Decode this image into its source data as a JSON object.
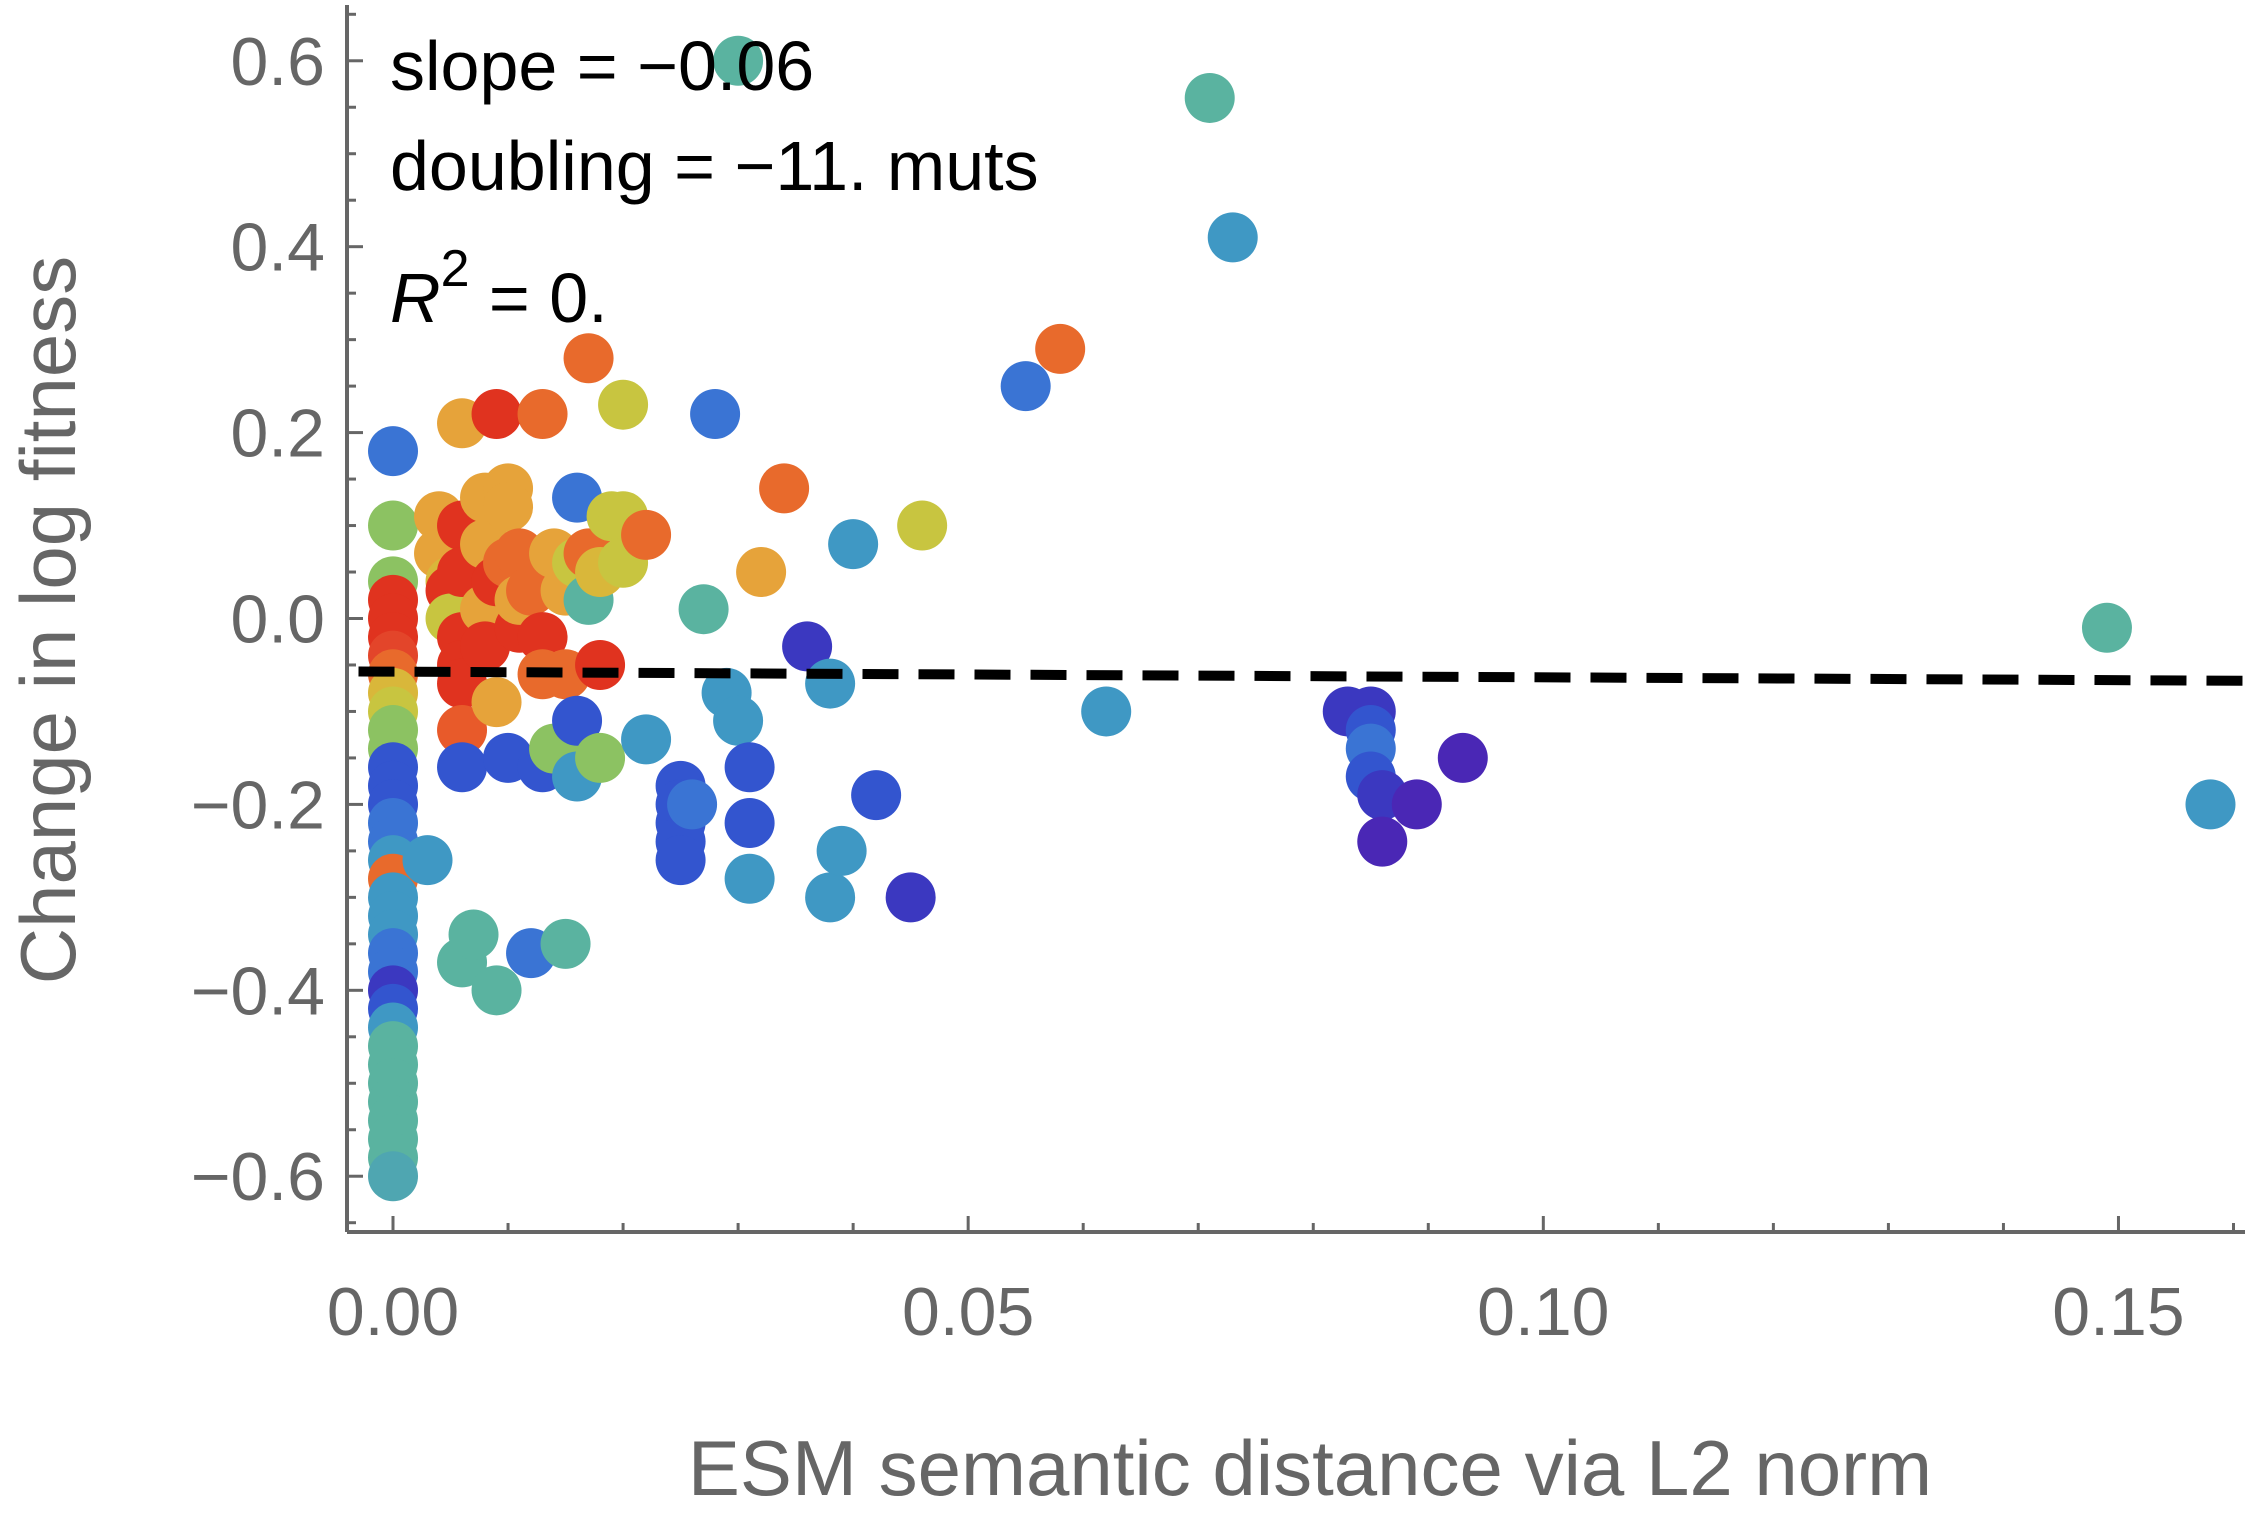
{
  "chart_data": {
    "type": "scatter",
    "title": "",
    "xlabel": "ESM semantic distance via L2 norm",
    "ylabel": "Change in log fitness",
    "xlim": [
      -0.004,
      0.161
    ],
    "ylim": [
      -0.66,
      0.66
    ],
    "xticks": [
      0.0,
      0.05,
      0.1,
      0.15
    ],
    "xtick_labels": [
      "0.00",
      "0.05",
      "0.10",
      "0.15"
    ],
    "yticks": [
      -0.6,
      -0.4,
      -0.2,
      0.0,
      0.2,
      0.4,
      0.6
    ],
    "ytick_labels": [
      "−0.6",
      "−0.4",
      "−0.2",
      "0.0",
      "0.2",
      "0.4",
      "0.6"
    ],
    "grid": false,
    "legend": "none",
    "fit_line": {
      "slope": -0.06,
      "x": [
        -0.003,
        0.161
      ],
      "y": [
        -0.057,
        -0.067
      ],
      "style": "dashed",
      "color": "#000000"
    },
    "annotations": {
      "slope": "slope = −0.06",
      "doubling": "doubling = −11. muts",
      "r2_symbol": "R",
      "r2_exp": "2",
      "r2_value": " = 0."
    },
    "points": [
      {
        "x": 0.0,
        "y": 0.18,
        "c": "#3a74d4"
      },
      {
        "x": 0.0,
        "y": 0.1,
        "c": "#8cc262"
      },
      {
        "x": 0.0,
        "y": 0.04,
        "c": "#8cc262"
      },
      {
        "x": 0.0,
        "y": 0.02,
        "c": "#e0331f"
      },
      {
        "x": 0.0,
        "y": 0.0,
        "c": "#e0331f"
      },
      {
        "x": 0.0,
        "y": -0.02,
        "c": "#e0331f"
      },
      {
        "x": 0.0,
        "y": -0.04,
        "c": "#e3452a"
      },
      {
        "x": 0.0,
        "y": -0.06,
        "c": "#e86a2c"
      },
      {
        "x": 0.0,
        "y": -0.08,
        "c": "#d9b73a"
      },
      {
        "x": 0.0,
        "y": -0.1,
        "c": "#c8c540"
      },
      {
        "x": 0.0,
        "y": -0.12,
        "c": "#8cc262"
      },
      {
        "x": 0.0,
        "y": -0.14,
        "c": "#8cc262"
      },
      {
        "x": 0.0,
        "y": -0.16,
        "c": "#3355cf"
      },
      {
        "x": 0.0,
        "y": -0.18,
        "c": "#3355cf"
      },
      {
        "x": 0.0,
        "y": -0.2,
        "c": "#3355cf"
      },
      {
        "x": 0.0,
        "y": -0.22,
        "c": "#3a74d4"
      },
      {
        "x": 0.0,
        "y": -0.24,
        "c": "#3a74d4"
      },
      {
        "x": 0.0,
        "y": -0.26,
        "c": "#3f98c4"
      },
      {
        "x": 0.0,
        "y": -0.28,
        "c": "#e86a2c"
      },
      {
        "x": 0.0,
        "y": -0.3,
        "c": "#3f98c4"
      },
      {
        "x": 0.0,
        "y": -0.32,
        "c": "#3f98c4"
      },
      {
        "x": 0.0,
        "y": -0.34,
        "c": "#3f98c4"
      },
      {
        "x": 0.0,
        "y": -0.36,
        "c": "#3a74d4"
      },
      {
        "x": 0.0,
        "y": -0.38,
        "c": "#3a74d4"
      },
      {
        "x": 0.0,
        "y": -0.4,
        "c": "#3b38c0"
      },
      {
        "x": 0.0,
        "y": -0.42,
        "c": "#3355cf"
      },
      {
        "x": 0.0,
        "y": -0.44,
        "c": "#3f98c4"
      },
      {
        "x": 0.0,
        "y": -0.46,
        "c": "#5ab3a0"
      },
      {
        "x": 0.0,
        "y": -0.48,
        "c": "#5ab3a0"
      },
      {
        "x": 0.0,
        "y": -0.5,
        "c": "#5ab3a0"
      },
      {
        "x": 0.0,
        "y": -0.52,
        "c": "#5ab3a0"
      },
      {
        "x": 0.0,
        "y": -0.54,
        "c": "#5ab3a0"
      },
      {
        "x": 0.0,
        "y": -0.56,
        "c": "#5ab3a0"
      },
      {
        "x": 0.0,
        "y": -0.58,
        "c": "#5ab3a0"
      },
      {
        "x": 0.0,
        "y": -0.6,
        "c": "#4fa6b1"
      },
      {
        "x": 0.003,
        "y": -0.26,
        "c": "#3f98c4"
      },
      {
        "x": 0.004,
        "y": 0.11,
        "c": "#e6a33a"
      },
      {
        "x": 0.004,
        "y": 0.07,
        "c": "#e6a33a"
      },
      {
        "x": 0.005,
        "y": 0.04,
        "c": "#d9b73a"
      },
      {
        "x": 0.005,
        "y": 0.03,
        "c": "#e0331f"
      },
      {
        "x": 0.005,
        "y": 0.0,
        "c": "#c8c540"
      },
      {
        "x": 0.006,
        "y": 0.1,
        "c": "#e0331f"
      },
      {
        "x": 0.006,
        "y": 0.05,
        "c": "#e0331f"
      },
      {
        "x": 0.006,
        "y": -0.02,
        "c": "#e0331f"
      },
      {
        "x": 0.006,
        "y": -0.05,
        "c": "#e0331f"
      },
      {
        "x": 0.006,
        "y": -0.07,
        "c": "#e0331f"
      },
      {
        "x": 0.006,
        "y": -0.12,
        "c": "#e85a2a"
      },
      {
        "x": 0.006,
        "y": -0.16,
        "c": "#3355cf"
      },
      {
        "x": 0.006,
        "y": -0.37,
        "c": "#5ab3a0"
      },
      {
        "x": 0.006,
        "y": 0.21,
        "c": "#e6a33a"
      },
      {
        "x": 0.007,
        "y": -0.34,
        "c": "#5ab3a0"
      },
      {
        "x": 0.008,
        "y": 0.13,
        "c": "#e6a33a"
      },
      {
        "x": 0.008,
        "y": 0.08,
        "c": "#e6a33a"
      },
      {
        "x": 0.008,
        "y": 0.01,
        "c": "#e6a33a"
      },
      {
        "x": 0.008,
        "y": -0.03,
        "c": "#e0331f"
      },
      {
        "x": 0.009,
        "y": 0.04,
        "c": "#e0331f"
      },
      {
        "x": 0.009,
        "y": -0.09,
        "c": "#e6a33a"
      },
      {
        "x": 0.009,
        "y": -0.4,
        "c": "#5ab3a0"
      },
      {
        "x": 0.009,
        "y": 0.22,
        "c": "#e0331f"
      },
      {
        "x": 0.01,
        "y": 0.14,
        "c": "#e6a33a"
      },
      {
        "x": 0.01,
        "y": 0.12,
        "c": "#e6a33a"
      },
      {
        "x": 0.01,
        "y": 0.06,
        "c": "#e86a2c"
      },
      {
        "x": 0.01,
        "y": -0.15,
        "c": "#3355cf"
      },
      {
        "x": 0.011,
        "y": 0.07,
        "c": "#e86a2c"
      },
      {
        "x": 0.011,
        "y": -0.01,
        "c": "#e0331f"
      },
      {
        "x": 0.011,
        "y": 0.02,
        "c": "#e6a33a"
      },
      {
        "x": 0.012,
        "y": -0.36,
        "c": "#3a74d4"
      },
      {
        "x": 0.012,
        "y": 0.03,
        "c": "#e86a2c"
      },
      {
        "x": 0.013,
        "y": 0.22,
        "c": "#e86a2c"
      },
      {
        "x": 0.013,
        "y": -0.02,
        "c": "#e0331f"
      },
      {
        "x": 0.013,
        "y": -0.06,
        "c": "#e86a2c"
      },
      {
        "x": 0.013,
        "y": -0.16,
        "c": "#3355cf"
      },
      {
        "x": 0.014,
        "y": 0.07,
        "c": "#e6a33a"
      },
      {
        "x": 0.014,
        "y": -0.14,
        "c": "#8cc262"
      },
      {
        "x": 0.015,
        "y": -0.35,
        "c": "#5ab3a0"
      },
      {
        "x": 0.015,
        "y": -0.06,
        "c": "#e86a2c"
      },
      {
        "x": 0.015,
        "y": 0.03,
        "c": "#e6a33a"
      },
      {
        "x": 0.016,
        "y": 0.13,
        "c": "#3a74d4"
      },
      {
        "x": 0.016,
        "y": 0.06,
        "c": "#c8c540"
      },
      {
        "x": 0.016,
        "y": -0.11,
        "c": "#3355cf"
      },
      {
        "x": 0.016,
        "y": -0.17,
        "c": "#3f98c4"
      },
      {
        "x": 0.017,
        "y": 0.07,
        "c": "#e86a2c"
      },
      {
        "x": 0.017,
        "y": 0.02,
        "c": "#5ab3a0"
      },
      {
        "x": 0.017,
        "y": 0.28,
        "c": "#e86a2c"
      },
      {
        "x": 0.018,
        "y": 0.05,
        "c": "#d9b73a"
      },
      {
        "x": 0.018,
        "y": -0.05,
        "c": "#e0331f"
      },
      {
        "x": 0.018,
        "y": -0.15,
        "c": "#8cc262"
      },
      {
        "x": 0.019,
        "y": 0.11,
        "c": "#c8c540"
      },
      {
        "x": 0.02,
        "y": 0.23,
        "c": "#c8c540"
      },
      {
        "x": 0.02,
        "y": 0.11,
        "c": "#c8c540"
      },
      {
        "x": 0.02,
        "y": 0.06,
        "c": "#c8c540"
      },
      {
        "x": 0.022,
        "y": 0.09,
        "c": "#e86a2c"
      },
      {
        "x": 0.022,
        "y": -0.13,
        "c": "#3f98c4"
      },
      {
        "x": 0.025,
        "y": -0.18,
        "c": "#3355cf"
      },
      {
        "x": 0.025,
        "y": -0.2,
        "c": "#3355cf"
      },
      {
        "x": 0.025,
        "y": -0.22,
        "c": "#3355cf"
      },
      {
        "x": 0.025,
        "y": -0.24,
        "c": "#3355cf"
      },
      {
        "x": 0.025,
        "y": -0.26,
        "c": "#3355cf"
      },
      {
        "x": 0.026,
        "y": -0.2,
        "c": "#3a74d4"
      },
      {
        "x": 0.027,
        "y": 0.01,
        "c": "#5ab3a0"
      },
      {
        "x": 0.028,
        "y": 0.22,
        "c": "#3a74d4"
      },
      {
        "x": 0.029,
        "y": -0.08,
        "c": "#3f98c4"
      },
      {
        "x": 0.03,
        "y": -0.11,
        "c": "#3f98c4"
      },
      {
        "x": 0.03,
        "y": 0.6,
        "c": "#5ab3a0"
      },
      {
        "x": 0.031,
        "y": -0.16,
        "c": "#3355cf"
      },
      {
        "x": 0.031,
        "y": -0.22,
        "c": "#3355cf"
      },
      {
        "x": 0.031,
        "y": -0.28,
        "c": "#3f98c4"
      },
      {
        "x": 0.032,
        "y": 0.05,
        "c": "#e6a33a"
      },
      {
        "x": 0.034,
        "y": 0.14,
        "c": "#e86a2c"
      },
      {
        "x": 0.036,
        "y": -0.03,
        "c": "#3b38c0"
      },
      {
        "x": 0.038,
        "y": -0.07,
        "c": "#3f98c4"
      },
      {
        "x": 0.038,
        "y": -0.3,
        "c": "#3f98c4"
      },
      {
        "x": 0.039,
        "y": -0.25,
        "c": "#3f98c4"
      },
      {
        "x": 0.04,
        "y": 0.08,
        "c": "#3f98c4"
      },
      {
        "x": 0.042,
        "y": -0.19,
        "c": "#3355cf"
      },
      {
        "x": 0.045,
        "y": -0.3,
        "c": "#3b38c0"
      },
      {
        "x": 0.046,
        "y": 0.1,
        "c": "#c8c540"
      },
      {
        "x": 0.055,
        "y": 0.25,
        "c": "#3a74d4"
      },
      {
        "x": 0.058,
        "y": 0.29,
        "c": "#e86a2c"
      },
      {
        "x": 0.062,
        "y": -0.1,
        "c": "#3f98c4"
      },
      {
        "x": 0.071,
        "y": 0.56,
        "c": "#5ab3a0"
      },
      {
        "x": 0.073,
        "y": 0.41,
        "c": "#3f98c4"
      },
      {
        "x": 0.083,
        "y": -0.1,
        "c": "#3b38c0"
      },
      {
        "x": 0.085,
        "y": -0.1,
        "c": "#3b38c0"
      },
      {
        "x": 0.085,
        "y": -0.12,
        "c": "#3355cf"
      },
      {
        "x": 0.085,
        "y": -0.14,
        "c": "#3a74d4"
      },
      {
        "x": 0.085,
        "y": -0.17,
        "c": "#3355cf"
      },
      {
        "x": 0.086,
        "y": -0.19,
        "c": "#3b38c0"
      },
      {
        "x": 0.086,
        "y": -0.24,
        "c": "#4a27b5"
      },
      {
        "x": 0.089,
        "y": -0.2,
        "c": "#4a27b5"
      },
      {
        "x": 0.093,
        "y": -0.15,
        "c": "#4a27b5"
      },
      {
        "x": 0.149,
        "y": -0.01,
        "c": "#5ab3a0"
      },
      {
        "x": 0.158,
        "y": -0.2,
        "c": "#3f98c4"
      }
    ]
  }
}
